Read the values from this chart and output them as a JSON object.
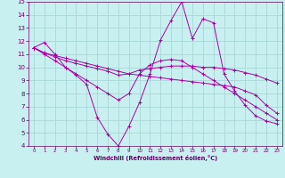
{
  "xlabel": "Windchill (Refroidissement éolien,°C)",
  "ylabel": "",
  "background_color": "#c8f0f0",
  "grid_color": "#a8d8d8",
  "line_color": "#aa00aa",
  "xlim": [
    -0.5,
    23.5
  ],
  "ylim": [
    4,
    15
  ],
  "x_ticks": [
    0,
    1,
    2,
    3,
    4,
    5,
    6,
    7,
    8,
    9,
    10,
    11,
    12,
    13,
    14,
    15,
    16,
    17,
    18,
    19,
    20,
    21,
    22,
    23
  ],
  "y_ticks": [
    4,
    5,
    6,
    7,
    8,
    9,
    10,
    11,
    12,
    13,
    14,
    15
  ],
  "series": [
    {
      "x": [
        0,
        1,
        2,
        3,
        4,
        5,
        6,
        7,
        8,
        9,
        10,
        11,
        12,
        13,
        14,
        15,
        16,
        17,
        18,
        19,
        20,
        21,
        22,
        23
      ],
      "y": [
        11.5,
        11.9,
        11.0,
        10.0,
        9.4,
        8.7,
        6.2,
        4.9,
        4.0,
        5.5,
        7.3,
        9.5,
        12.1,
        13.6,
        15.0,
        12.2,
        13.7,
        13.4,
        9.5,
        8.2,
        7.1,
        6.3,
        5.9,
        5.7
      ]
    },
    {
      "x": [
        0,
        1,
        2,
        3,
        4,
        5,
        6,
        7,
        8,
        9,
        10,
        11,
        12,
        13,
        14,
        15,
        16,
        17,
        18,
        19,
        20,
        21,
        22,
        23
      ],
      "y": [
        11.5,
        11.1,
        10.9,
        10.7,
        10.5,
        10.3,
        10.1,
        9.9,
        9.7,
        9.5,
        9.4,
        9.3,
        9.2,
        9.1,
        9.0,
        8.9,
        8.8,
        8.7,
        8.6,
        8.5,
        8.2,
        7.9,
        7.1,
        6.5
      ]
    },
    {
      "x": [
        0,
        1,
        2,
        3,
        4,
        5,
        6,
        7,
        8,
        9,
        10,
        11,
        12,
        13,
        14,
        15,
        16,
        17,
        18,
        19,
        20,
        21,
        22,
        23
      ],
      "y": [
        11.5,
        11.1,
        10.8,
        10.5,
        10.3,
        10.1,
        9.9,
        9.7,
        9.4,
        9.5,
        9.8,
        9.9,
        10.0,
        10.1,
        10.1,
        10.1,
        10.0,
        10.0,
        9.9,
        9.8,
        9.6,
        9.4,
        9.1,
        8.8
      ]
    },
    {
      "x": [
        0,
        1,
        2,
        3,
        4,
        5,
        6,
        7,
        8,
        9,
        10,
        11,
        12,
        13,
        14,
        15,
        16,
        17,
        18,
        19,
        20,
        21,
        22,
        23
      ],
      "y": [
        11.5,
        11.0,
        10.5,
        10.0,
        9.5,
        9.0,
        8.5,
        8.0,
        7.5,
        8.0,
        9.5,
        10.2,
        10.5,
        10.6,
        10.5,
        10.0,
        9.5,
        9.0,
        8.5,
        8.0,
        7.5,
        7.0,
        6.5,
        6.0
      ]
    }
  ]
}
